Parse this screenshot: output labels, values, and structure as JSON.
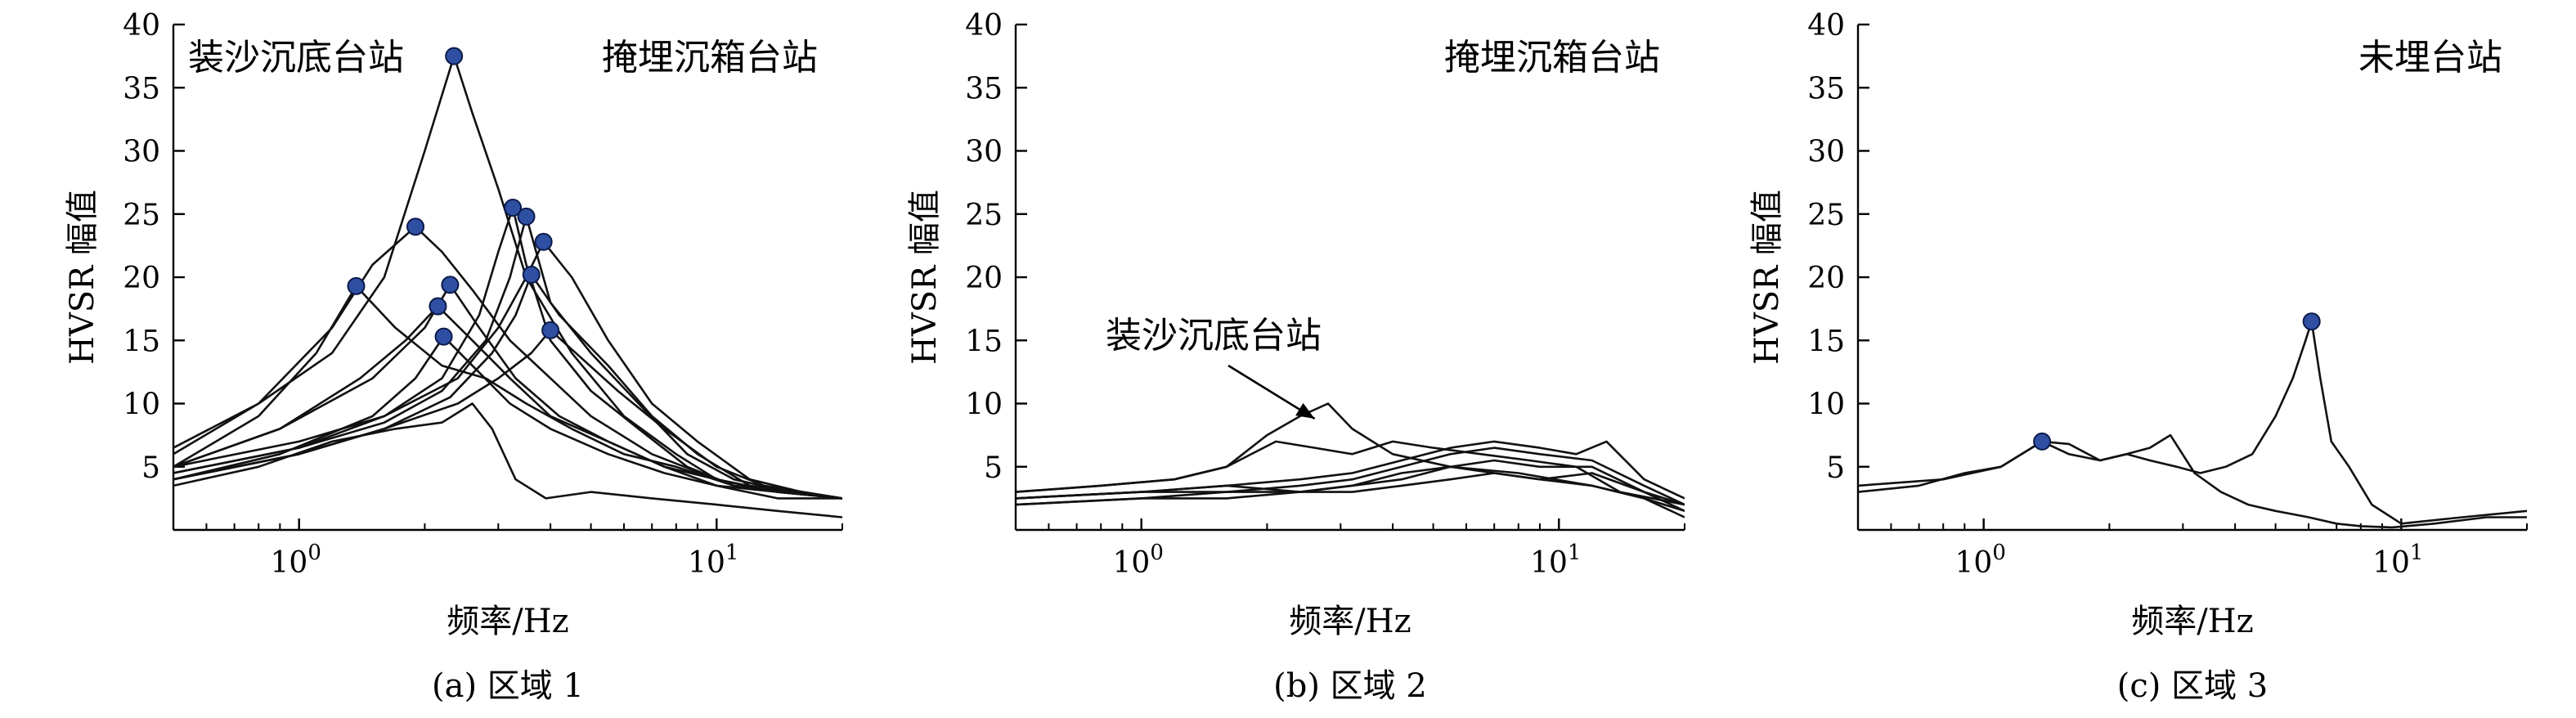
{
  "chart_data": [
    {
      "type": "line",
      "caption": "(a) 区域 1",
      "xlabel": "频率/Hz",
      "ylabel": "HVSR 幅值",
      "xscale": "log",
      "xlim": [
        0.5,
        20
      ],
      "ylim": [
        0,
        40
      ],
      "yticks": [
        5,
        10,
        15,
        20,
        25,
        30,
        35,
        40
      ],
      "xticks": [
        {
          "value": 1,
          "label": "10",
          "exp": "0"
        },
        {
          "value": 10,
          "label": "10",
          "exp": "1"
        }
      ],
      "legend": "none",
      "annotations": [
        {
          "text": "装沙沉底台站",
          "position": "top-left"
        },
        {
          "text": "掩埋沉箱台站",
          "position": "top-right"
        }
      ],
      "marker_color": "#2f4fa3",
      "series": [
        {
          "x": [
            0.5,
            0.8,
            1.2,
            1.6,
            2.0,
            2.35,
            2.6,
            3.0,
            3.5,
            4.5,
            6.0,
            8.0,
            10.0,
            14.0,
            20.0
          ],
          "y": [
            6.5,
            10,
            14,
            20,
            30,
            37.5,
            33,
            27,
            20,
            14,
            9,
            6,
            4,
            3,
            2.5
          ],
          "peak": [
            2.35,
            37.5
          ]
        },
        {
          "x": [
            0.5,
            0.8,
            1.2,
            1.5,
            1.9,
            2.2,
            2.6,
            3.2,
            4.0,
            5.0,
            7.0,
            10.0,
            14.0,
            20.0
          ],
          "y": [
            6,
            10,
            16,
            21,
            24,
            22,
            19,
            15,
            12,
            9,
            6,
            4,
            3,
            2.5
          ],
          "peak": [
            1.9,
            24.0
          ]
        },
        {
          "x": [
            0.5,
            0.8,
            1.1,
            1.37,
            1.7,
            2.2,
            2.8,
            3.5,
            4.5,
            6.0,
            8.0,
            11.0,
            15.0,
            20.0
          ],
          "y": [
            5,
            9,
            14,
            19.3,
            16,
            13,
            12,
            10,
            8,
            6,
            5,
            3.5,
            3,
            2.5
          ],
          "peak": [
            1.37,
            19.3
          ]
        },
        {
          "x": [
            0.5,
            1.0,
            1.6,
            2.2,
            2.7,
            3.0,
            3.25,
            3.5,
            4.0,
            5.0,
            6.5,
            8.5,
            11.0,
            15.0,
            20.0
          ],
          "y": [
            5,
            7,
            9,
            12,
            17,
            22,
            25.5,
            21,
            15,
            11,
            8,
            5,
            3.5,
            3,
            2.5
          ],
          "peak": [
            3.25,
            25.5
          ]
        },
        {
          "x": [
            0.5,
            1.0,
            1.6,
            2.2,
            2.8,
            3.2,
            3.5,
            4.0,
            5.0,
            6.5,
            8.5,
            11.0,
            15.0,
            20.0
          ],
          "y": [
            4.5,
            6.5,
            8.5,
            11,
            15,
            20,
            24.8,
            18,
            14,
            10,
            6,
            4,
            3,
            2.5
          ],
          "peak": [
            3.5,
            24.8
          ]
        },
        {
          "x": [
            0.5,
            1.0,
            1.6,
            2.3,
            2.9,
            3.3,
            3.6,
            4.2,
            5.5,
            7.0,
            9.0,
            12.0,
            16.0,
            20.0
          ],
          "y": [
            4,
            6,
            8,
            10.5,
            14,
            17,
            20.2,
            17,
            13,
            9,
            6,
            3.5,
            3,
            2.5
          ],
          "peak": [
            3.6,
            20.2
          ]
        },
        {
          "x": [
            0.5,
            1.0,
            1.6,
            2.4,
            3.0,
            3.5,
            3.85,
            4.5,
            5.5,
            7.0,
            9.0,
            12.0,
            16.0,
            20.0
          ],
          "y": [
            4.5,
            6.5,
            9,
            12,
            16,
            20,
            22.8,
            20,
            15,
            10,
            7,
            4,
            3,
            2.5
          ],
          "peak": [
            3.85,
            22.8
          ]
        },
        {
          "x": [
            0.5,
            1.0,
            1.6,
            2.4,
            3.0,
            3.6,
            4.0,
            4.6,
            5.8,
            7.5,
            10.0,
            13.0,
            20.0
          ],
          "y": [
            4,
            6,
            8,
            10,
            12,
            14,
            15.8,
            14,
            11,
            8,
            5,
            3.5,
            2.5
          ],
          "peak": [
            4.0,
            15.8
          ]
        },
        {
          "x": [
            0.5,
            0.9,
            1.4,
            1.8,
            2.15,
            2.6,
            3.2,
            4.0,
            5.5,
            7.5,
            10.0,
            14.0,
            20.0
          ],
          "y": [
            5,
            8,
            12,
            15,
            17.7,
            15,
            12,
            9,
            7,
            5,
            4,
            3,
            2.5
          ],
          "peak": [
            2.15,
            17.7
          ]
        },
        {
          "x": [
            0.5,
            0.9,
            1.5,
            2.0,
            2.3,
            2.7,
            3.3,
            4.2,
            5.5,
            7.5,
            10.0,
            14.0,
            20.0
          ],
          "y": [
            5,
            8,
            12,
            16,
            19.4,
            16,
            12,
            9,
            7,
            5,
            3.5,
            3,
            2.5
          ],
          "peak": [
            2.3,
            19.4
          ]
        },
        {
          "x": [
            0.5,
            0.9,
            1.5,
            1.9,
            2.22,
            2.6,
            3.2,
            4.0,
            5.5,
            7.5,
            10.0,
            14.0,
            20.0
          ],
          "y": [
            4,
            6,
            9,
            12,
            15.3,
            13,
            10,
            8,
            6,
            4.5,
            3.5,
            2.5,
            2.5
          ],
          "peak": [
            2.22,
            15.3
          ]
        },
        {
          "x": [
            0.5,
            0.8,
            1.2,
            1.7,
            2.2,
            2.6,
            2.9,
            3.3,
            3.9,
            5.0,
            7.0,
            10.0,
            14.0,
            20.0
          ],
          "y": [
            3.5,
            5,
            7,
            8,
            8.5,
            10,
            8,
            4,
            2.5,
            3,
            2.5,
            2,
            1.5,
            1
          ],
          "peak": null
        }
      ]
    },
    {
      "type": "line",
      "caption": "(b) 区域 2",
      "xlabel": "频率/Hz",
      "ylabel": "HVSR 幅值",
      "xscale": "log",
      "xlim": [
        0.5,
        20
      ],
      "ylim": [
        0,
        40
      ],
      "yticks": [
        5,
        10,
        15,
        20,
        25,
        30,
        35,
        40
      ],
      "xticks": [
        {
          "value": 1,
          "label": "10",
          "exp": "0"
        },
        {
          "value": 10,
          "label": "10",
          "exp": "1"
        }
      ],
      "legend": "none",
      "annotations": [
        {
          "text": "掩埋沉箱台站",
          "position": "top-right"
        },
        {
          "text": "装沙沉底台站",
          "position": "middle-left",
          "arrow": true
        }
      ],
      "series": [
        {
          "x": [
            0.5,
            0.8,
            1.2,
            1.6,
            2.0,
            2.4,
            2.8,
            3.2,
            4.0,
            5.5,
            8.0,
            12.0,
            16.0,
            20.0
          ],
          "y": [
            3,
            3.5,
            4,
            5,
            7.5,
            9,
            10,
            8,
            6,
            5,
            4.5,
            3.5,
            2.5,
            1.5
          ],
          "peak": null
        },
        {
          "x": [
            0.5,
            0.8,
            1.2,
            1.6,
            2.1,
            2.6,
            3.2,
            4.0,
            5.0,
            6.5,
            8.5,
            11.0,
            14.0,
            20.0
          ],
          "y": [
            3,
            3.5,
            4,
            5,
            7,
            6.5,
            6,
            7,
            6.5,
            6,
            5.5,
            5,
            3,
            2
          ],
          "peak": null
        },
        {
          "x": [
            0.5,
            1.0,
            1.6,
            2.4,
            3.2,
            4.2,
            5.5,
            7.0,
            9.0,
            11.0,
            13.0,
            16.0,
            20.0
          ],
          "y": [
            2.5,
            3,
            3.5,
            4,
            4.5,
            5.5,
            6.5,
            7,
            6.5,
            6,
            7,
            4,
            2.5
          ],
          "peak": null
        },
        {
          "x": [
            0.5,
            1.0,
            1.6,
            2.4,
            3.2,
            4.2,
            5.5,
            7.0,
            9.0,
            12.0,
            16.0,
            20.0
          ],
          "y": [
            2.5,
            3,
            3,
            3.5,
            4,
            5,
            6,
            6.5,
            6,
            5.5,
            3.5,
            2
          ],
          "peak": null
        },
        {
          "x": [
            0.5,
            1.0,
            1.6,
            2.4,
            3.2,
            4.2,
            5.5,
            7.0,
            9.0,
            12.0,
            16.0,
            20.0
          ],
          "y": [
            2,
            2.5,
            3,
            3,
            3.5,
            4,
            5,
            5.5,
            5,
            5,
            3,
            1.5
          ],
          "peak": null
        },
        {
          "x": [
            0.5,
            1.0,
            1.6,
            2.4,
            3.2,
            4.2,
            5.5,
            7.0,
            9.0,
            12.0,
            16.0,
            20.0
          ],
          "y": [
            2.5,
            3,
            3.5,
            3,
            3.5,
            4.5,
            5,
            4.5,
            4,
            4.5,
            3,
            2
          ],
          "peak": null
        },
        {
          "x": [
            0.5,
            1.0,
            1.6,
            2.4,
            3.2,
            4.2,
            5.5,
            7.0,
            9.0,
            12.0,
            16.0,
            20.0
          ],
          "y": [
            2,
            2.5,
            2.5,
            3,
            3,
            3.5,
            4,
            4.5,
            4,
            3.5,
            2.5,
            1
          ],
          "peak": null
        }
      ]
    },
    {
      "type": "line",
      "caption": "(c) 区域 3",
      "xlabel": "频率/Hz",
      "ylabel": "HVSR 幅值",
      "xscale": "log",
      "xlim": [
        0.5,
        20
      ],
      "ylim": [
        0,
        40
      ],
      "yticks": [
        5,
        10,
        15,
        20,
        25,
        30,
        35,
        40
      ],
      "xticks": [
        {
          "value": 1,
          "label": "10",
          "exp": "0"
        },
        {
          "value": 10,
          "label": "10",
          "exp": "1"
        }
      ],
      "legend": "none",
      "annotations": [
        {
          "text": "未埋台站",
          "position": "top-right"
        }
      ],
      "marker_color": "#2f4fa3",
      "series": [
        {
          "x": [
            0.5,
            0.8,
            1.1,
            1.38,
            1.6,
            1.9,
            2.2,
            2.5,
            2.9,
            3.3,
            3.8,
            4.4,
            5.0,
            5.5,
            5.9,
            6.1,
            6.4,
            6.8,
            7.5,
            8.5,
            10.0,
            14.0,
            20.0
          ],
          "y": [
            3.5,
            4,
            5,
            7,
            6.8,
            5.5,
            6,
            5.5,
            5,
            4.5,
            5,
            6,
            9,
            12,
            15,
            16.5,
            12,
            7,
            5,
            2,
            0.5,
            1,
            1.5
          ],
          "peak": [
            6.1,
            16.5
          ]
        },
        {
          "x": [
            0.5,
            0.7,
            0.9,
            1.1,
            1.38,
            1.6,
            1.9,
            2.2,
            2.5,
            2.8,
            3.2,
            3.7,
            4.3,
            5.0,
            6.0,
            7.0,
            8.0,
            9.5,
            12.0,
            16.0,
            20.0
          ],
          "y": [
            3,
            3.5,
            4.5,
            5,
            7,
            6,
            5.5,
            6,
            6.5,
            7.5,
            4.5,
            3,
            2,
            1.5,
            1,
            0.5,
            0.3,
            0.2,
            0.5,
            1,
            1
          ],
          "peak": [
            1.38,
            7.0
          ]
        }
      ]
    }
  ]
}
